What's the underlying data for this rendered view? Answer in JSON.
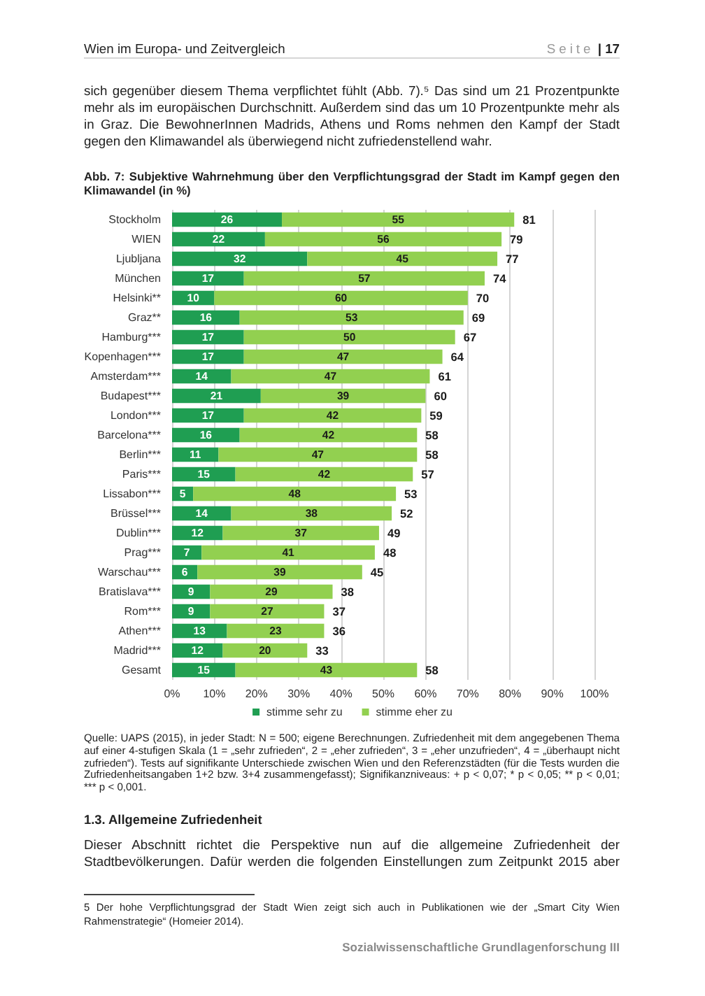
{
  "chart_data": {
    "type": "bar",
    "orientation": "horizontal",
    "stacked": true,
    "title": "Abb. 7: Subjektive Wahrnehmung über den Verpflichtungsgrad der Stadt im Kampf gegen den Klimawandel (in %)",
    "categories": [
      "Stockholm",
      "WIEN",
      "Ljubljana",
      "München",
      "Helsinki**",
      "Graz**",
      "Hamburg***",
      "Kopenhagen***",
      "Amsterdam***",
      "Budapest***",
      "London***",
      "Barcelona***",
      "Berlin***",
      "Paris***",
      "Lissabon***",
      "Brüssel***",
      "Dublin***",
      "Prag***",
      "Warschau***",
      "Bratislava***",
      "Rom***",
      "Athen***",
      "Madrid***",
      "Gesamt"
    ],
    "series": [
      {
        "name": "stimme sehr zu",
        "color": "#1f9e52",
        "values": [
          26,
          22,
          32,
          17,
          10,
          16,
          17,
          17,
          14,
          21,
          17,
          16,
          11,
          15,
          5,
          14,
          12,
          7,
          6,
          9,
          9,
          13,
          12,
          15
        ]
      },
      {
        "name": "stimme eher zu",
        "color": "#92d050",
        "values": [
          55,
          56,
          45,
          57,
          60,
          53,
          50,
          47,
          47,
          39,
          42,
          42,
          47,
          42,
          48,
          38,
          37,
          41,
          39,
          29,
          27,
          23,
          20,
          43
        ]
      }
    ],
    "totals": [
      "81",
      "79",
      "77",
      "74",
      "70",
      "69",
      "67",
      "64",
      "61",
      "60",
      "59",
      "58",
      "58",
      "57",
      "53",
      "52",
      "49",
      "48",
      "45",
      "38",
      "37",
      "36",
      "33",
      "58"
    ],
    "data_labels": true,
    "xlim": [
      0,
      100
    ],
    "xticks": [
      {
        "value": 0,
        "label": "0%"
      },
      {
        "value": 10,
        "label": "10%"
      },
      {
        "value": 20,
        "label": "20%"
      },
      {
        "value": 30,
        "label": "30%"
      },
      {
        "value": 40,
        "label": "40%"
      },
      {
        "value": 50,
        "label": "50%"
      },
      {
        "value": 60,
        "label": "60%"
      },
      {
        "value": 70,
        "label": "70%"
      },
      {
        "value": 80,
        "label": "80%"
      },
      {
        "value": 90,
        "label": "90%"
      },
      {
        "value": 100,
        "label": "100%"
      }
    ],
    "grid": "x",
    "legend": "bottom",
    "annotations": [
      "Wien im Europa- und Zeitvergleich",
      "Seite | 17",
      "sich gegenüber diesem Thema verpflichtet fühlt (Abb. 7).⁵ Das sind um 21 Prozentpunkte mehr als im europäischen Durchschnitt. Außerdem sind das um 10 Prozentpunkte mehr als in Graz. Die BewohnerInnen Madrids, Athens und Roms nehmen den Kampf der Stadt gegen den Klimawandel als überwiegend nicht zufriedenstellend wahr.",
      "Quelle: UAPS (2015), in jeder Stadt: N = 500; eigene Berechnungen. Zufriedenheit mit dem angegebenen Thema auf einer 4-stufigen Skala (1 = „sehr zufrieden“, 2 = „eher zufrieden“, 3 = „eher unzufrieden“, 4 = „überhaupt nicht zufrieden“). Tests auf signifikante Unterschiede zwischen Wien und den Referenzstädten (für die Tests wurden die Zufriedenheitsangaben 1+2 bzw. 3+4 zusammengefasst); Signifikanzniveaus: + p < 0,07; * p < 0,05; ** p < 0,01; *** p < 0,001.",
      "1.3. Allgemeine Zufriedenheit",
      "Dieser Abschnitt richtet die Perspektive nun auf die allgemeine Zufriedenheit der Stadtbevölkerungen. Dafür werden die folgenden Einstellungen zum Zeitpunkt 2015 aber",
      "5 Der hohe Verpflichtungsgrad der Stadt Wien zeigt sich auch in Publikationen wie der „Smart City Wien Rahmenstrategie“ (Homeier 2014).",
      "Sozialwissenschaftliche Grundlagenforschung III"
    ]
  }
}
